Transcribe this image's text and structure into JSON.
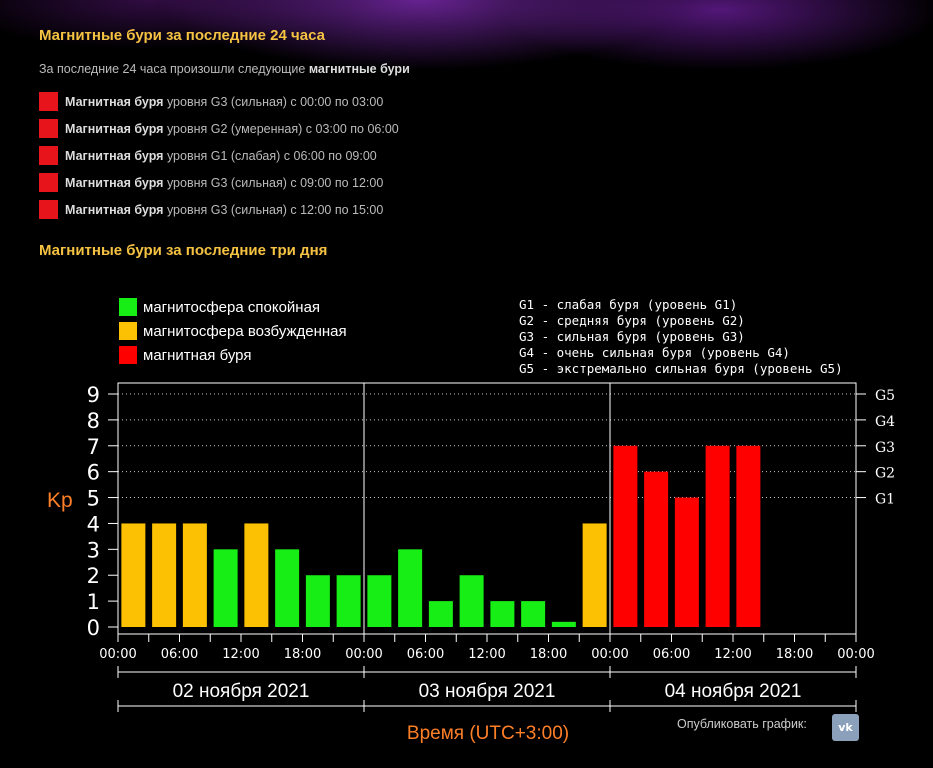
{
  "header": {
    "title_24h": "Магнитные бури за последние 24 часа",
    "intro_plain": "За последние 24 часа произошли следующие ",
    "intro_bold": "магнитные бури",
    "title_3d": "Магнитные бури за последние три дня"
  },
  "storms": [
    {
      "bold": "Магнитная буря",
      "text": " уровня G3 (сильная) с 00:00 по 03:00"
    },
    {
      "bold": "Магнитная буря",
      "text": " уровня G2 (умеренная) с 03:00 по 06:00"
    },
    {
      "bold": "Магнитная буря",
      "text": " уровня G1 (слабая) с 06:00 по 09:00"
    },
    {
      "bold": "Магнитная буря",
      "text": " уровня G3 (сильная) с 09:00 по 12:00"
    },
    {
      "bold": "Магнитная буря",
      "text": " уровня G3 (сильная) с 12:00 по 15:00"
    }
  ],
  "colors": {
    "quiet": "#16ee16",
    "unsettled": "#fbc102",
    "storm": "#ff0000",
    "storm_marker": "#e8141b",
    "title": "#f5c242",
    "axis_label": "#ff7f27"
  },
  "chart_data": {
    "type": "bar",
    "ylabel": "Kp",
    "xlabel": "Время (UTC+3:00)",
    "ylim": [
      0,
      9
    ],
    "yticks": [
      "0",
      "1",
      "2",
      "3",
      "4",
      "5",
      "6",
      "7",
      "8",
      "9"
    ],
    "g_ticks": [
      {
        "label": "G1",
        "kp": 5
      },
      {
        "label": "G2",
        "kp": 6
      },
      {
        "label": "G3",
        "kp": 7
      },
      {
        "label": "G4",
        "kp": 8
      },
      {
        "label": "G5",
        "kp": 9
      }
    ],
    "legend": [
      {
        "label": "магнитосфера спокойная",
        "color": "#16ee16"
      },
      {
        "label": "магнитосфера возбужденная",
        "color": "#fbc102"
      },
      {
        "label": "магнитная буря",
        "color": "#ff0000"
      }
    ],
    "g_legend": [
      "G1 - слабая буря (уровень G1)",
      "G2 - средняя буря (уровень G2)",
      "G3 - сильная буря (уровень G3)",
      "G4 - очень сильная буря (уровень G4)",
      "G5 - экстремально сильная буря (уровень G5)"
    ],
    "days": [
      "02 ноября 2021",
      "03 ноября 2021",
      "04 ноября 2021"
    ],
    "time_ticks": [
      "00:00",
      "06:00",
      "12:00",
      "18:00",
      "00:00",
      "06:00",
      "12:00",
      "18:00",
      "00:00",
      "06:00",
      "12:00",
      "18:00",
      "00:00"
    ],
    "interval_hours": 3,
    "values": [
      4,
      4,
      4,
      3,
      4,
      3,
      2,
      2,
      2,
      3,
      1,
      2,
      1,
      1,
      0.2,
      4,
      7,
      6,
      5,
      7,
      7
    ],
    "levels": [
      "unsettled",
      "unsettled",
      "unsettled",
      "quiet",
      "unsettled",
      "quiet",
      "quiet",
      "quiet",
      "quiet",
      "quiet",
      "quiet",
      "quiet",
      "quiet",
      "quiet",
      "quiet",
      "unsettled",
      "storm",
      "storm",
      "storm",
      "storm",
      "storm"
    ]
  },
  "footer": {
    "publish_label": "Опубликовать график:",
    "vk_label": "vk"
  }
}
